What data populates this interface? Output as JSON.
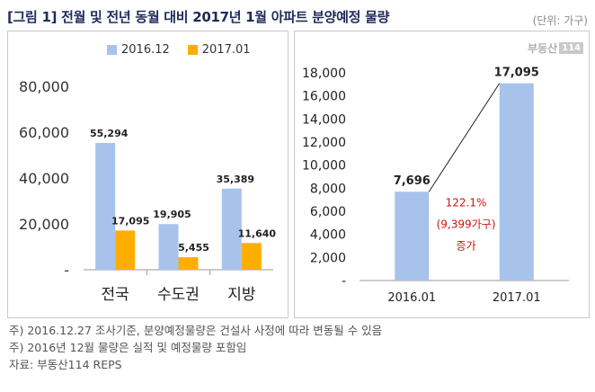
{
  "title": "[그림 1] 전월 및 전년 동월 대비 2017년 1월 아파트 분양예정 물량",
  "unit": "(단위: 가구)",
  "brand": {
    "text": "부동산",
    "box": "114"
  },
  "colors": {
    "series1": "#a7c3ec",
    "series2": "#ffae00",
    "title": "#1f2a5a",
    "annotation": "#cc1111"
  },
  "chart_data": [
    {
      "type": "bar",
      "categories": [
        "전국",
        "수도권",
        "지방"
      ],
      "series": [
        {
          "name": "2016.12",
          "values": [
            55294,
            19905,
            35389
          ],
          "labels": [
            "55,294",
            "19,905",
            "35,389"
          ]
        },
        {
          "name": "2017.01",
          "values": [
            17095,
            5455,
            11640
          ],
          "labels": [
            "17,095",
            "5,455",
            "11,640"
          ]
        }
      ],
      "ylim": [
        0,
        80000
      ],
      "yticks": [
        "-",
        "20,000",
        "40,000",
        "60,000",
        "80,000"
      ],
      "legend": "top"
    },
    {
      "type": "bar",
      "categories": [
        "2016.01",
        "2017.01"
      ],
      "values": [
        7696,
        17095
      ],
      "labels": [
        "7,696",
        "17,095"
      ],
      "ylim": [
        0,
        18000
      ],
      "yticks": [
        "-",
        "2,000",
        "4,000",
        "6,000",
        "8,000",
        "10,000",
        "12,000",
        "14,000",
        "16,000",
        "18,000"
      ],
      "annotation": [
        "122.1%",
        "(9,399가구)",
        "증가"
      ]
    }
  ],
  "notes": [
    "주) 2016.12.27 조사기준, 분양예정물량은 건설사 사정에 따라 변동될 수 있음",
    "주) 2016년 12월 물량은 실적 및 예정물량 포함임",
    "자료: 부동산114 REPS"
  ]
}
